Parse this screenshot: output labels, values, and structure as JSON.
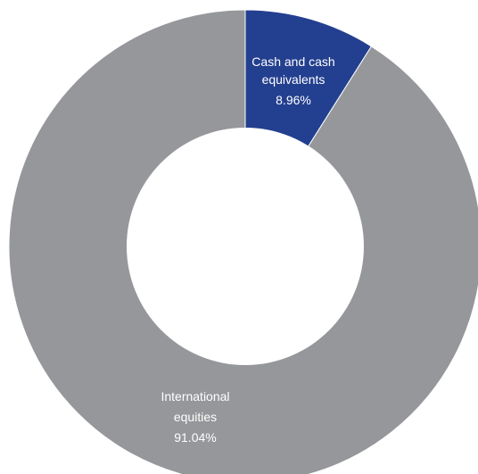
{
  "chart_data": {
    "type": "pie",
    "subtype": "donut",
    "title": "",
    "legend": "none",
    "slices": [
      {
        "label_lines": [
          "Cash and cash",
          "equivalents"
        ],
        "value": 8.96,
        "value_label": "8.96%",
        "color": "#233f8f"
      },
      {
        "label_lines": [
          "International",
          "equities"
        ],
        "value": 91.04,
        "value_label": "91.04%",
        "color": "#96979b"
      }
    ]
  }
}
